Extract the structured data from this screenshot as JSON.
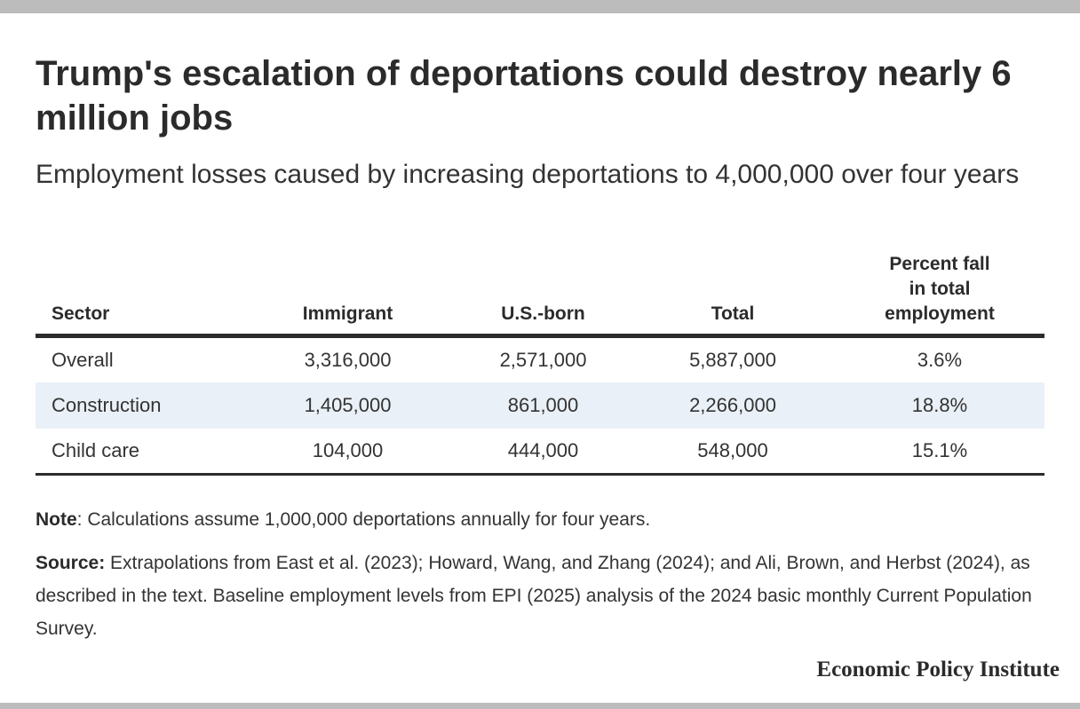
{
  "title": "Trump's escalation of deportations could destroy nearly 6 million jobs",
  "subtitle": "Employment losses caused by increasing deportations to 4,000,000 over four years",
  "table": {
    "headers": {
      "sector": "Sector",
      "immigrant": "Immigrant",
      "us_born": "U.S.-born",
      "total": "Total",
      "percent_line1": "Percent fall",
      "percent_line2": "in total",
      "percent_line3": "employment"
    },
    "rows": [
      {
        "sector": "Overall",
        "immigrant": "3,316,000",
        "us_born": "2,571,000",
        "total": "5,887,000",
        "percent": "3.6%"
      },
      {
        "sector": "Construction",
        "immigrant": "1,405,000",
        "us_born": "861,000",
        "total": "2,266,000",
        "percent": "18.8%"
      },
      {
        "sector": "Child care",
        "immigrant": "104,000",
        "us_born": "444,000",
        "total": "548,000",
        "percent": "15.1%"
      }
    ]
  },
  "note": {
    "label": "Note",
    "text": ": Calculations assume 1,000,000 deportations annually for four years."
  },
  "source": {
    "label": "Source:",
    "text": " Extrapolations from East et al. (2023); Howard, Wang, and Zhang (2024); and Ali, Brown, and Herbst (2024), as described in the text. Baseline employment levels from EPI (2025) analysis of the 2024 basic monthly Current Population Survey."
  },
  "brand": "Economic Policy Institute",
  "colors": {
    "frame_bar": "#bcbcbc",
    "row_shade": "#e9f0f7",
    "text": "#2b2b2b"
  },
  "chart_data": {
    "type": "table",
    "title": "Trump's escalation of deportations could destroy nearly 6 million jobs",
    "subtitle": "Employment losses caused by increasing deportations to 4,000,000 over four years",
    "columns": [
      "Sector",
      "Immigrant",
      "U.S.-born",
      "Total",
      "Percent fall in total employment"
    ],
    "rows": [
      [
        "Overall",
        3316000,
        2571000,
        5887000,
        3.6
      ],
      [
        "Construction",
        1405000,
        861000,
        2266000,
        18.8
      ],
      [
        "Child care",
        104000,
        444000,
        548000,
        15.1
      ]
    ]
  }
}
